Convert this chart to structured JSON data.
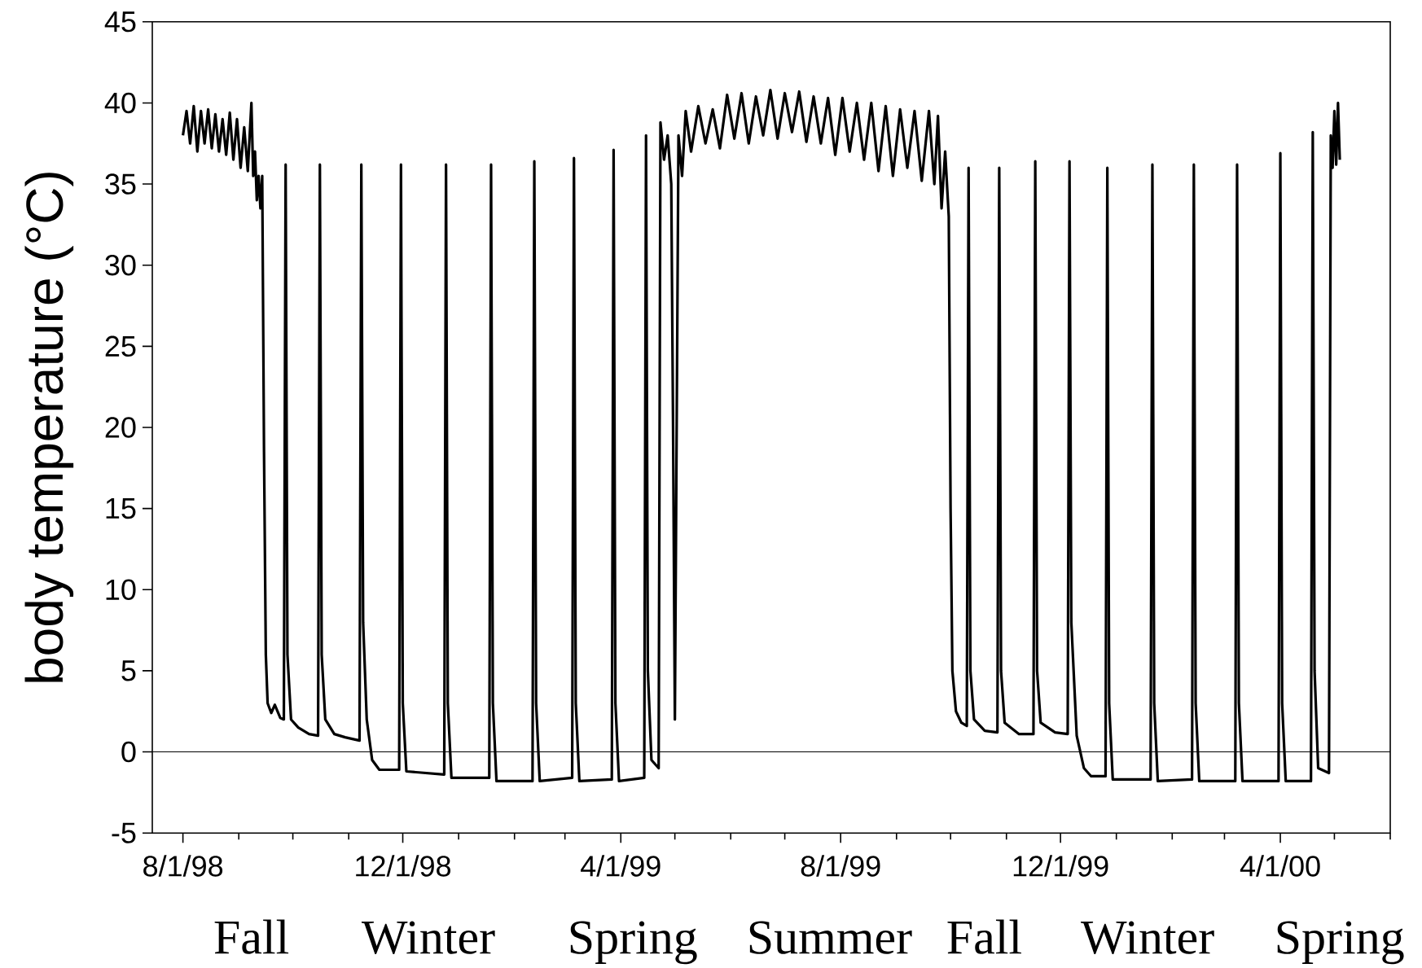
{
  "chart_data": {
    "type": "line",
    "ylabel": "body temperature (°C)",
    "series": [
      {
        "color": "#000000",
        "line_style": "solid",
        "x": [
          "1998-08-01",
          "1998-08-03",
          "1998-08-05",
          "1998-08-07",
          "1998-08-09",
          "1998-08-11",
          "1998-08-13",
          "1998-08-15",
          "1998-08-17",
          "1998-08-19",
          "1998-08-21",
          "1998-08-23",
          "1998-08-25",
          "1998-08-27",
          "1998-08-29",
          "1998-08-31",
          "1998-09-02",
          "1998-09-04",
          "1998-09-06",
          "1998-09-08",
          "1998-09-09",
          "1998-09-10",
          "1998-09-11",
          "1998-09-12",
          "1998-09-13",
          "1998-09-14",
          "1998-09-15",
          "1998-09-16",
          "1998-09-17",
          "1998-09-19",
          "1998-09-21",
          "1998-09-24",
          "1998-09-26",
          "1998-09-27",
          "1998-09-28",
          "1998-09-30",
          "1998-10-04",
          "1998-10-10",
          "1998-10-15",
          "1998-10-16",
          "1998-10-17",
          "1998-10-19",
          "1998-10-24",
          "1998-10-30",
          "1998-11-07",
          "1998-11-08",
          "1998-11-09",
          "1998-11-11",
          "1998-11-14",
          "1998-11-18",
          "1998-11-29",
          "1998-11-30",
          "1998-12-01",
          "1998-12-03",
          "1998-12-24",
          "1998-12-25",
          "1998-12-26",
          "1998-12-28",
          "1999-01-18",
          "1999-01-19",
          "1999-01-20",
          "1999-01-22",
          "1999-02-11",
          "1999-02-12",
          "1999-02-13",
          "1999-02-15",
          "1999-03-05",
          "1999-03-06",
          "1999-03-07",
          "1999-03-09",
          "1999-03-27",
          "1999-03-28",
          "1999-03-29",
          "1999-03-31",
          "1999-04-14",
          "1999-04-15",
          "1999-04-16",
          "1999-04-18",
          "1999-04-22",
          "1999-04-23",
          "1999-04-25",
          "1999-04-27",
          "1999-04-29",
          "1999-04-30",
          "1999-05-01",
          "1999-05-02",
          "1999-05-03",
          "1999-05-05",
          "1999-05-07",
          "1999-05-10",
          "1999-05-14",
          "1999-05-18",
          "1999-05-22",
          "1999-05-26",
          "1999-05-30",
          "1999-06-03",
          "1999-06-07",
          "1999-06-11",
          "1999-06-15",
          "1999-06-19",
          "1999-06-23",
          "1999-06-27",
          "1999-07-01",
          "1999-07-05",
          "1999-07-09",
          "1999-07-13",
          "1999-07-17",
          "1999-07-21",
          "1999-07-25",
          "1999-07-29",
          "1999-08-02",
          "1999-08-06",
          "1999-08-10",
          "1999-08-14",
          "1999-08-18",
          "1999-08-22",
          "1999-08-26",
          "1999-08-30",
          "1999-09-03",
          "1999-09-07",
          "1999-09-11",
          "1999-09-15",
          "1999-09-19",
          "1999-09-22",
          "1999-09-24",
          "1999-09-26",
          "1999-09-28",
          "1999-09-30",
          "1999-10-01",
          "1999-10-02",
          "1999-10-04",
          "1999-10-07",
          "1999-10-10",
          "1999-10-11",
          "1999-10-12",
          "1999-10-14",
          "1999-10-20",
          "1999-10-27",
          "1999-10-28",
          "1999-10-29",
          "1999-10-31",
          "1999-11-08",
          "1999-11-16",
          "1999-11-17",
          "1999-11-18",
          "1999-11-20",
          "1999-11-28",
          "1999-12-05",
          "1999-12-06",
          "1999-12-07",
          "1999-12-10",
          "1999-12-14",
          "1999-12-18",
          "1999-12-26",
          "1999-12-27",
          "1999-12-28",
          "1999-12-30",
          "2000-01-20",
          "2000-01-21",
          "2000-01-22",
          "2000-01-24",
          "2000-02-12",
          "2000-02-13",
          "2000-02-14",
          "2000-02-16",
          "2000-03-07",
          "2000-03-08",
          "2000-03-09",
          "2000-03-11",
          "2000-03-31",
          "2000-04-01",
          "2000-04-02",
          "2000-04-04",
          "2000-04-18",
          "2000-04-19",
          "2000-04-20",
          "2000-04-22",
          "2000-04-28",
          "2000-04-29",
          "2000-04-30",
          "2000-05-01",
          "2000-05-02",
          "2000-05-03",
          "2000-05-04"
        ],
        "values": [
          38.0,
          39.5,
          37.5,
          39.8,
          37.0,
          39.5,
          37.5,
          39.6,
          37.2,
          39.3,
          37.0,
          39.0,
          36.8,
          39.4,
          36.5,
          39.0,
          36.0,
          38.5,
          35.8,
          40.0,
          35.5,
          37.0,
          34.0,
          35.5,
          33.5,
          35.5,
          18.5,
          6.0,
          3.0,
          2.4,
          2.9,
          2.1,
          2.0,
          36.2,
          6.0,
          2.0,
          1.5,
          1.1,
          1.0,
          36.2,
          6.0,
          2.0,
          1.1,
          0.9,
          0.7,
          36.2,
          8.0,
          2.0,
          -0.5,
          -1.1,
          -1.1,
          36.2,
          3.0,
          -1.2,
          -1.4,
          36.2,
          3.0,
          -1.6,
          -1.6,
          36.2,
          3.0,
          -1.8,
          -1.8,
          36.4,
          3.0,
          -1.8,
          -1.6,
          36.6,
          3.0,
          -1.8,
          -1.7,
          37.1,
          3.0,
          -1.8,
          -1.6,
          38.0,
          5.0,
          -0.5,
          -1.0,
          38.8,
          36.5,
          38.0,
          35.0,
          20.0,
          2.0,
          20.0,
          38.0,
          35.5,
          39.5,
          37.0,
          39.8,
          37.5,
          39.6,
          37.2,
          40.5,
          37.8,
          40.6,
          37.5,
          40.4,
          38.0,
          40.8,
          37.8,
          40.6,
          38.2,
          40.7,
          37.6,
          40.4,
          37.5,
          40.3,
          36.8,
          40.3,
          37.0,
          40.0,
          36.5,
          40.0,
          35.8,
          39.8,
          35.5,
          39.6,
          36.0,
          39.5,
          35.2,
          39.5,
          35.0,
          39.2,
          33.5,
          37.0,
          33.0,
          15.0,
          5.0,
          2.5,
          1.8,
          1.6,
          36.0,
          5.0,
          2.0,
          1.3,
          1.2,
          36.0,
          5.0,
          1.8,
          1.1,
          1.1,
          36.4,
          5.0,
          1.8,
          1.2,
          1.1,
          36.4,
          8.0,
          1.0,
          -1.0,
          -1.5,
          -1.5,
          36.0,
          3.0,
          -1.7,
          -1.7,
          36.2,
          3.0,
          -1.8,
          -1.7,
          36.2,
          3.0,
          -1.8,
          -1.8,
          36.2,
          3.0,
          -1.8,
          -1.8,
          36.9,
          3.0,
          -1.8,
          -1.8,
          38.2,
          5.0,
          -1.0,
          -1.3,
          38.0,
          36.0,
          39.5,
          36.2,
          40.0,
          36.5
        ]
      }
    ],
    "xlim": [
      "1998-07-15",
      "2000-06-01"
    ],
    "xticks": [
      {
        "value": "1998-08-01",
        "label": "8/1/98"
      },
      {
        "value": "1998-09-01",
        "label": null
      },
      {
        "value": "1998-10-01",
        "label": null
      },
      {
        "value": "1998-11-01",
        "label": null
      },
      {
        "value": "1998-12-01",
        "label": "12/1/98"
      },
      {
        "value": "1999-01-01",
        "label": null
      },
      {
        "value": "1999-02-01",
        "label": null
      },
      {
        "value": "1999-03-01",
        "label": null
      },
      {
        "value": "1999-04-01",
        "label": "4/1/99"
      },
      {
        "value": "1999-05-01",
        "label": null
      },
      {
        "value": "1999-06-01",
        "label": null
      },
      {
        "value": "1999-07-01",
        "label": null
      },
      {
        "value": "1999-08-01",
        "label": "8/1/99"
      },
      {
        "value": "1999-09-01",
        "label": null
      },
      {
        "value": "1999-10-01",
        "label": null
      },
      {
        "value": "1999-11-01",
        "label": null
      },
      {
        "value": "1999-12-01",
        "label": "12/1/99"
      },
      {
        "value": "2000-01-01",
        "label": null
      },
      {
        "value": "2000-02-01",
        "label": null
      },
      {
        "value": "2000-03-01",
        "label": null
      },
      {
        "value": "2000-04-01",
        "label": "4/1/00"
      },
      {
        "value": "2000-05-01",
        "label": null
      },
      {
        "value": "2000-06-01",
        "label": null
      }
    ],
    "ylim": [
      -5,
      45
    ],
    "yticks": [
      -5,
      0,
      5,
      10,
      15,
      20,
      25,
      30,
      35,
      40,
      45
    ],
    "ref_lines": [
      {
        "axis": "y",
        "value": 0,
        "color": "#000000"
      }
    ],
    "annotations": [
      "Fall",
      "Winter",
      "Spring",
      "Summer",
      "Fall",
      "Winter",
      "Spring"
    ]
  }
}
